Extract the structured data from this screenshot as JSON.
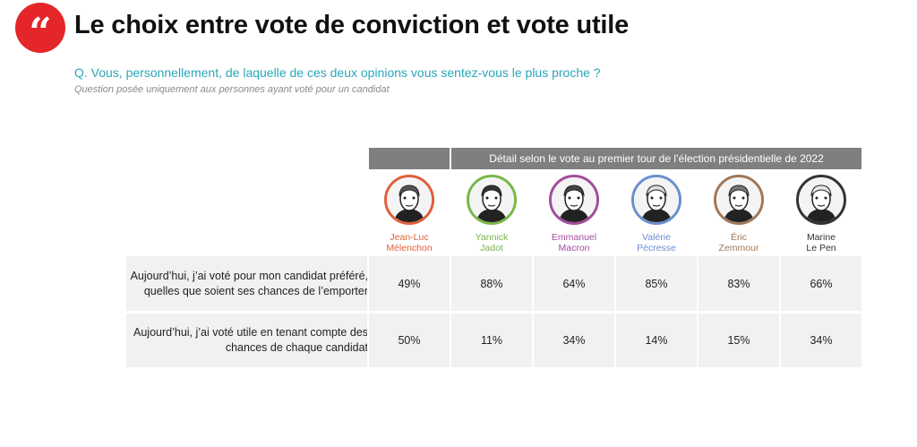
{
  "header": {
    "quote_glyph": "“",
    "title": "Le choix entre vote de conviction et vote utile",
    "question": "Q. Vous, personnellement, de laquelle de ces deux opinions vous sentez-vous le plus proche ?",
    "note": "Question posée uniquement aux personnes ayant voté pour un candidat"
  },
  "chart_data": {
    "type": "table",
    "column_group_header": "Détail selon le vote au premier tour de l’élection présidentielle de 2022",
    "columns": [
      {
        "name": "Jean-Luc\nMélenchon",
        "color": "#e0603a",
        "icon": "melenchon-portrait"
      },
      {
        "name": "Yannick\nJadot",
        "color": "#7ab648",
        "icon": "jadot-portrait"
      },
      {
        "name": "Emmanuel\nMacron",
        "color": "#a24d9c",
        "icon": "macron-portrait"
      },
      {
        "name": "Valérie\nPécresse",
        "color": "#6b8fcf",
        "icon": "pecresse-portrait"
      },
      {
        "name": "Éric\nZemmour",
        "color": "#a0785a",
        "icon": "zemmour-portrait"
      },
      {
        "name": "Marine\nLe Pen",
        "color": "#333333",
        "icon": "lepen-portrait"
      }
    ],
    "rows": [
      {
        "label": "Aujourd’hui, j’ai voté pour mon candidat préféré,\nquelles que soient ses chances de l’emporter",
        "values": [
          "49%",
          "88%",
          "64%",
          "85%",
          "83%",
          "66%"
        ]
      },
      {
        "label": "Aujourd’hui, j’ai voté utile en tenant compte des\nchances de chaque candidat",
        "values": [
          "50%",
          "11%",
          "34%",
          "14%",
          "15%",
          "34%"
        ]
      }
    ]
  }
}
